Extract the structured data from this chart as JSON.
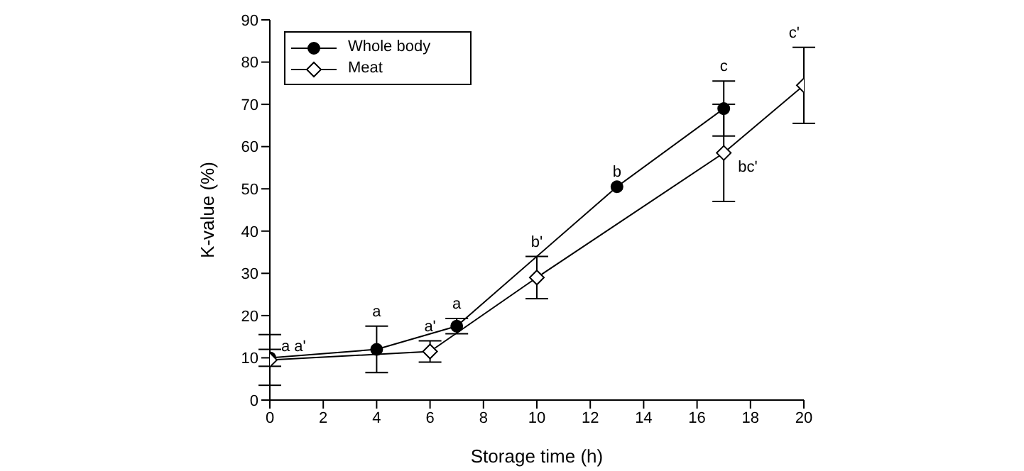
{
  "chart_data": {
    "type": "line",
    "xlabel": "Storage time (h)",
    "ylabel": "K-value (%)",
    "xlim": [
      0,
      20
    ],
    "xticks": [
      0,
      2,
      4,
      6,
      8,
      10,
      12,
      14,
      16,
      18,
      20
    ],
    "ylim": [
      0,
      90
    ],
    "yticks": [
      0,
      10,
      20,
      30,
      40,
      50,
      60,
      70,
      80,
      90
    ],
    "legend": "top left",
    "series": [
      {
        "name": "Whole body",
        "color": "#000000",
        "marker": "circle",
        "x": [
          0,
          4,
          7,
          13,
          17
        ],
        "values": [
          10,
          12,
          17.5,
          50.5,
          69
        ],
        "errors": [
          2,
          5.5,
          1.8,
          null,
          6.5
        ]
      },
      {
        "name": "Meat",
        "color": "#000000",
        "marker": "diamond",
        "x": [
          0,
          6,
          10,
          17,
          20
        ],
        "values": [
          9.5,
          11.5,
          29,
          58.5,
          74.5
        ],
        "errors": [
          6,
          2.5,
          5,
          11.5,
          9
        ]
      }
    ],
    "annotations": [
      {
        "text": "a a'",
        "x": 0,
        "y": 10
      },
      {
        "text": "a",
        "x": 4,
        "y": 12
      },
      {
        "text": "a'",
        "x": 6,
        "y": 11.5
      },
      {
        "text": "a",
        "x": 7,
        "y": 17.5
      },
      {
        "text": "b'",
        "x": 10,
        "y": 29
      },
      {
        "text": "b",
        "x": 13,
        "y": 50.5
      },
      {
        "text": "c",
        "x": 17,
        "y": 69
      },
      {
        "text": "bc'",
        "x": 17,
        "y": 58.5
      },
      {
        "text": "c'",
        "x": 20,
        "y": 74.5
      }
    ]
  }
}
